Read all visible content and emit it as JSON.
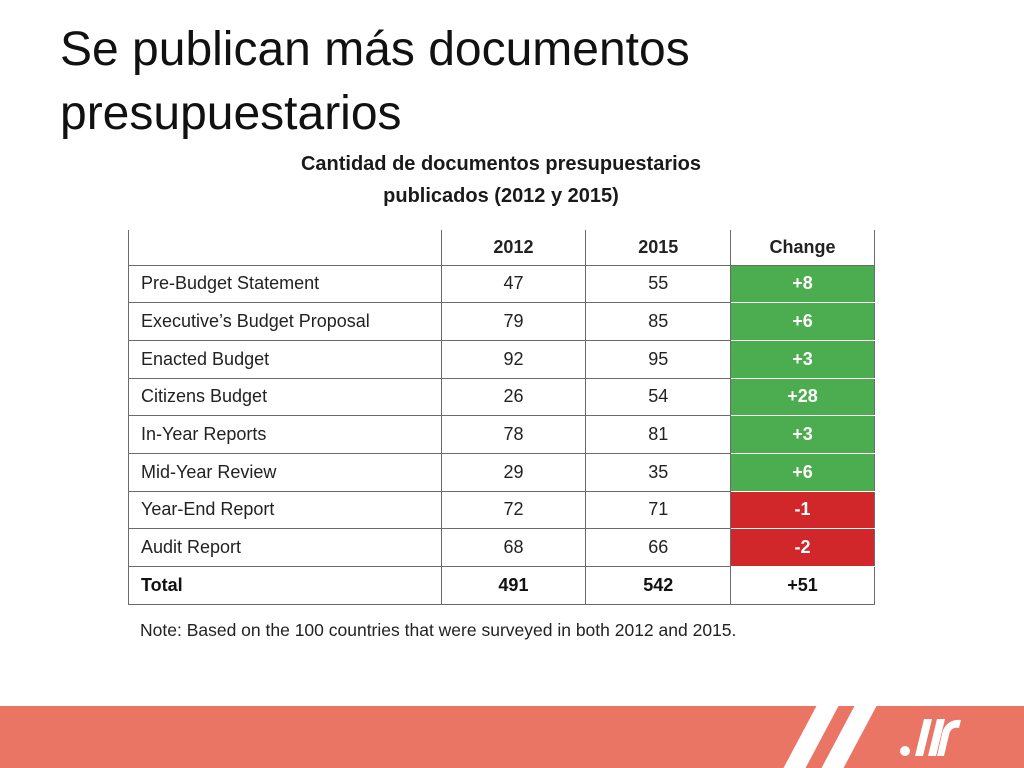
{
  "slide": {
    "title": "Se publican más documentos presupuestarios"
  },
  "table": {
    "caption_line1": "Cantidad de documentos presupuestarios",
    "caption_line2": "publicados (2012 y 2015)",
    "headers": [
      "",
      "2012",
      "2015",
      "Change"
    ],
    "rows": [
      {
        "label": "Pre-Budget Statement",
        "y2012": "47",
        "y2015": "55",
        "change": "+8",
        "status": "increase"
      },
      {
        "label": "Executive’s Budget Proposal",
        "y2012": "79",
        "y2015": "85",
        "change": "+6",
        "status": "increase"
      },
      {
        "label": "Enacted Budget",
        "y2012": "92",
        "y2015": "95",
        "change": "+3",
        "status": "increase"
      },
      {
        "label": "Citizens Budget",
        "y2012": "26",
        "y2015": "54",
        "change": "+28",
        "status": "increase"
      },
      {
        "label": "In-Year Reports",
        "y2012": "78",
        "y2015": "81",
        "change": "+3",
        "status": "increase"
      },
      {
        "label": "Mid-Year Review",
        "y2012": "29",
        "y2015": "35",
        "change": "+6",
        "status": "increase"
      },
      {
        "label": "Year-End Report",
        "y2012": "72",
        "y2015": "71",
        "change": "-1",
        "status": "decrease"
      },
      {
        "label": "Audit Report",
        "y2012": "68",
        "y2015": "66",
        "change": "-2",
        "status": "decrease"
      }
    ],
    "total": {
      "label": "Total",
      "y2012": "491",
      "y2015": "542",
      "change": "+51"
    },
    "note": "Note: Based on the 100 countries that were surveyed in both 2012 and 2015."
  },
  "colors": {
    "increase": "#4bad4f",
    "decrease": "#d2272a",
    "footer_band": "#ea7565"
  },
  "footer": {
    "logo_icon": "organization-logo-icon"
  }
}
